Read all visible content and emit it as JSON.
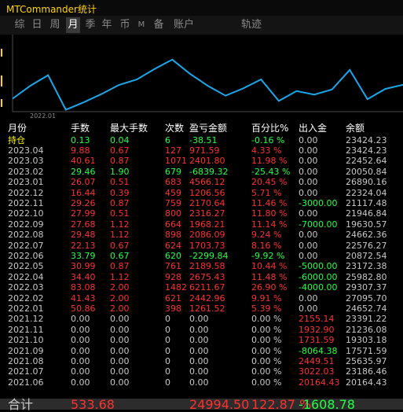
{
  "window": {
    "title": "MTCommander统计"
  },
  "tabs": [
    {
      "label": "综",
      "active": false
    },
    {
      "label": "日",
      "active": false
    },
    {
      "label": "周",
      "active": false
    },
    {
      "label": "月",
      "active": true
    },
    {
      "label": "季",
      "active": false
    },
    {
      "label": "年",
      "active": false
    },
    {
      "label": "币",
      "active": false
    },
    {
      "label": "M",
      "active": false
    },
    {
      "label": "备",
      "active": false
    },
    {
      "label": "账户",
      "active": false
    },
    {
      "label": "轨迹",
      "active": false
    }
  ],
  "chart_data": {
    "type": "line",
    "x_label_shown": "2022.01",
    "x": [
      "2021.06",
      "2021.07",
      "2021.08",
      "2021.09",
      "2021.10",
      "2021.11",
      "2021.12",
      "2022.01",
      "2022.02",
      "2022.03",
      "2022.04",
      "2022.05",
      "2022.06",
      "2022.07",
      "2022.08",
      "2022.09",
      "2022.10",
      "2022.11",
      "2022.12",
      "2023.01",
      "2023.02",
      "2023.03",
      "2023.04"
    ],
    "values": [
      20164.43,
      23186.46,
      25635.97,
      17571.59,
      19303.18,
      21236.08,
      23391.22,
      24652.74,
      27095.7,
      29307.37,
      25982.8,
      23172.38,
      20872.54,
      22576.27,
      24662.36,
      19630.57,
      21946.84,
      21117.48,
      22324.04,
      26890.16,
      20050.84,
      22452.64,
      23424.23
    ],
    "line_color": "#1aa7ec"
  },
  "table": {
    "headers": [
      "月份",
      "手数",
      "最大手数",
      "次数",
      "盈亏金额",
      "百分比%",
      "出入金",
      "余额"
    ],
    "holding": {
      "label": "持仓",
      "lots": "0.13",
      "max_lots": "0.04",
      "count": "6",
      "pnl": "-38.51",
      "pct": "-0.16 %",
      "flow": "0.00",
      "balance": "23424.23"
    },
    "rows": [
      {
        "month": "2023.04",
        "lots": "9.88",
        "max_lots": "0.67",
        "count": "127",
        "pnl": "971.59",
        "pct": "4.33 %",
        "flow": "0.00",
        "balance": "23424.23",
        "sign": "pos",
        "flow_sign": "zero"
      },
      {
        "month": "2023.03",
        "lots": "40.61",
        "max_lots": "0.87",
        "count": "1071",
        "pnl": "2401.80",
        "pct": "11.98 %",
        "flow": "0.00",
        "balance": "22452.64",
        "sign": "pos",
        "flow_sign": "zero"
      },
      {
        "month": "2023.02",
        "lots": "29.46",
        "max_lots": "1.90",
        "count": "679",
        "pnl": "-6839.32",
        "pct": "-25.43 %",
        "flow": "0.00",
        "balance": "20050.84",
        "sign": "neg",
        "flow_sign": "zero"
      },
      {
        "month": "2023.01",
        "lots": "26.07",
        "max_lots": "0.51",
        "count": "683",
        "pnl": "4566.12",
        "pct": "20.45 %",
        "flow": "0.00",
        "balance": "26890.16",
        "sign": "pos",
        "flow_sign": "zero"
      },
      {
        "month": "2022.12",
        "lots": "16.44",
        "max_lots": "0.39",
        "count": "459",
        "pnl": "1206.56",
        "pct": "5.71 %",
        "flow": "0.00",
        "balance": "22324.04",
        "sign": "pos",
        "flow_sign": "zero"
      },
      {
        "month": "2022.11",
        "lots": "29.26",
        "max_lots": "0.87",
        "count": "759",
        "pnl": "2170.64",
        "pct": "11.46 %",
        "flow": "-3000.00",
        "balance": "21117.48",
        "sign": "pos",
        "flow_sign": "out"
      },
      {
        "month": "2022.10",
        "lots": "27.99",
        "max_lots": "0.51",
        "count": "800",
        "pnl": "2316.27",
        "pct": "11.80 %",
        "flow": "0.00",
        "balance": "21946.84",
        "sign": "pos",
        "flow_sign": "zero"
      },
      {
        "month": "2022.09",
        "lots": "27.68",
        "max_lots": "1.12",
        "count": "664",
        "pnl": "1968.21",
        "pct": "11.14 %",
        "flow": "-7000.00",
        "balance": "19630.57",
        "sign": "pos",
        "flow_sign": "out"
      },
      {
        "month": "2022.08",
        "lots": "29.48",
        "max_lots": "1.12",
        "count": "898",
        "pnl": "2086.09",
        "pct": "9.24 %",
        "flow": "0.00",
        "balance": "24662.36",
        "sign": "pos",
        "flow_sign": "zero"
      },
      {
        "month": "2022.07",
        "lots": "22.13",
        "max_lots": "0.67",
        "count": "624",
        "pnl": "1703.73",
        "pct": "8.16 %",
        "flow": "0.00",
        "balance": "22576.27",
        "sign": "pos",
        "flow_sign": "zero"
      },
      {
        "month": "2022.06",
        "lots": "33.79",
        "max_lots": "0.67",
        "count": "620",
        "pnl": "-2299.84",
        "pct": "-9.92 %",
        "flow": "0.00",
        "balance": "20872.54",
        "sign": "neg",
        "flow_sign": "zero"
      },
      {
        "month": "2022.05",
        "lots": "30.99",
        "max_lots": "0.87",
        "count": "761",
        "pnl": "2189.58",
        "pct": "10.44 %",
        "flow": "-5000.00",
        "balance": "23172.38",
        "sign": "pos",
        "flow_sign": "out"
      },
      {
        "month": "2022.04",
        "lots": "34.40",
        "max_lots": "1.12",
        "count": "928",
        "pnl": "2675.43",
        "pct": "11.48 %",
        "flow": "-6000.00",
        "balance": "25982.80",
        "sign": "pos",
        "flow_sign": "out"
      },
      {
        "month": "2022.03",
        "lots": "83.08",
        "max_lots": "2.00",
        "count": "1482",
        "pnl": "6211.67",
        "pct": "26.90 %",
        "flow": "-4000.00",
        "balance": "29307.37",
        "sign": "pos",
        "flow_sign": "out"
      },
      {
        "month": "2022.02",
        "lots": "41.43",
        "max_lots": "2.00",
        "count": "621",
        "pnl": "2442.96",
        "pct": "9.91 %",
        "flow": "0.00",
        "balance": "27095.70",
        "sign": "pos",
        "flow_sign": "zero"
      },
      {
        "month": "2022.01",
        "lots": "50.86",
        "max_lots": "2.00",
        "count": "398",
        "pnl": "1261.52",
        "pct": "5.39 %",
        "flow": "0.00",
        "balance": "24652.74",
        "sign": "pos",
        "flow_sign": "zero"
      },
      {
        "month": "2021.12",
        "lots": "0.00",
        "max_lots": "0.00",
        "count": "0",
        "pnl": "0.00",
        "pct": "0.00 %",
        "flow": "2155.14",
        "balance": "23391.22",
        "sign": "zero",
        "flow_sign": "in"
      },
      {
        "month": "2021.11",
        "lots": "0.00",
        "max_lots": "0.00",
        "count": "0",
        "pnl": "0.00",
        "pct": "0.00 %",
        "flow": "1932.90",
        "balance": "21236.08",
        "sign": "zero",
        "flow_sign": "in"
      },
      {
        "month": "2021.10",
        "lots": "0.00",
        "max_lots": "0.00",
        "count": "0",
        "pnl": "0.00",
        "pct": "0.00 %",
        "flow": "1731.59",
        "balance": "19303.18",
        "sign": "zero",
        "flow_sign": "in"
      },
      {
        "month": "2021.09",
        "lots": "0.00",
        "max_lots": "0.00",
        "count": "0",
        "pnl": "0.00",
        "pct": "0.00 %",
        "flow": "-8064.38",
        "balance": "17571.59",
        "sign": "zero",
        "flow_sign": "out"
      },
      {
        "month": "2021.08",
        "lots": "0.00",
        "max_lots": "0.00",
        "count": "0",
        "pnl": "0.00",
        "pct": "0.00 %",
        "flow": "2449.51",
        "balance": "25635.97",
        "sign": "zero",
        "flow_sign": "in"
      },
      {
        "month": "2021.07",
        "lots": "0.00",
        "max_lots": "0.00",
        "count": "0",
        "pnl": "0.00",
        "pct": "0.00 %",
        "flow": "3022.03",
        "balance": "23186.46",
        "sign": "zero",
        "flow_sign": "in"
      },
      {
        "month": "2021.06",
        "lots": "0.00",
        "max_lots": "0.00",
        "count": "0",
        "pnl": "0.00",
        "pct": "0.00 %",
        "flow": "20164.43",
        "balance": "20164.43",
        "sign": "zero",
        "flow_sign": "in"
      }
    ],
    "total": {
      "label": "合计",
      "lots": "533.68",
      "pnl": "24994.50",
      "pct": "122.87 %",
      "flow": "-1608.78"
    }
  },
  "colors": {
    "positive": "#ff3030",
    "negative": "#22ff44",
    "neutral": "#c8c8c8",
    "title": "#ffd400",
    "chart_line": "#1aa7ec"
  }
}
